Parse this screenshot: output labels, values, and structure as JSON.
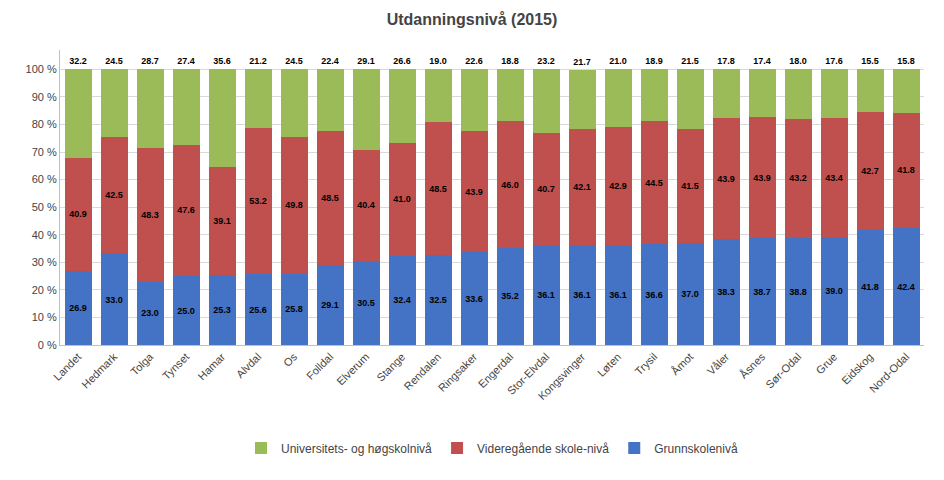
{
  "chart_data": {
    "type": "bar",
    "title": "Utdanningsnivå (2015)",
    "stacked": true,
    "data_labels": true,
    "grid": true,
    "legend": "bottom",
    "categories": [
      "Landet",
      "Hedmark",
      "Tolga",
      "Tynset",
      "Hamar",
      "Alvdal",
      "Os",
      "Folldal",
      "Elverum",
      "Stange",
      "Rendalen",
      "Ringsaker",
      "Engerdal",
      "Stor-Elvdal",
      "Kongsvinger",
      "Løten",
      "Trysil",
      "Åmot",
      "Våler",
      "Åsnes",
      "Sør-Odal",
      "Grue",
      "Eidskog",
      "Nord-Odal"
    ],
    "series": [
      {
        "name": "Grunnskolenivå",
        "color": "#4472C4",
        "values": [
          26.9,
          33.0,
          23.0,
          25.0,
          25.3,
          25.6,
          25.8,
          29.1,
          30.5,
          32.4,
          32.5,
          33.6,
          35.2,
          36.1,
          36.1,
          36.1,
          36.6,
          37.0,
          38.3,
          38.7,
          38.8,
          39.0,
          41.8,
          42.4
        ],
        "value_labels": [
          "26.9",
          "33.0",
          "23.0",
          "25.0",
          "25.3",
          "25.6",
          "25.8",
          "29.1",
          "30.5",
          "32.4",
          "32.5",
          "33.6",
          "35.2",
          "36.1",
          "36.1",
          "36.1",
          "36.6",
          "37.0",
          "38.3",
          "38.7",
          "38.8",
          "39.0",
          "41.8",
          "42.4"
        ]
      },
      {
        "name": "Videregående skole-nivå",
        "color": "#C0504D",
        "values": [
          40.9,
          42.5,
          48.3,
          47.6,
          39.1,
          53.2,
          49.8,
          48.5,
          40.4,
          41.0,
          48.5,
          43.9,
          46.0,
          40.7,
          42.1,
          42.9,
          44.5,
          41.5,
          43.9,
          43.9,
          43.2,
          43.4,
          42.7,
          41.8
        ],
        "value_labels": [
          "40.9",
          "42.5",
          "48.3",
          "47.6",
          "39.1",
          "53.2",
          "49.8",
          "48.5",
          "40.4",
          "41.0",
          "48.5",
          "43.9",
          "46.0",
          "40.7",
          "42.1",
          "42.9",
          "44.5",
          "41.5",
          "43.9",
          "43.9",
          "43.2",
          "43.4",
          "42.7",
          "41.8"
        ]
      },
      {
        "name": "Universitets- og høgskolnivå",
        "color": "#9BBB59",
        "values": [
          32.2,
          24.5,
          28.7,
          27.4,
          35.6,
          21.2,
          24.5,
          22.4,
          29.1,
          26.6,
          19.0,
          22.6,
          18.8,
          23.2,
          21.7,
          21.0,
          18.9,
          21.5,
          17.8,
          17.4,
          18.0,
          17.6,
          15.5,
          15.8
        ],
        "value_labels": [
          "32.2",
          "24.5",
          "28.7",
          "27.4",
          "35.6",
          "21.2",
          "24.5",
          "22.4",
          "29.1",
          "26.6",
          "19.0",
          "22.6",
          "18.8",
          "23.2",
          "21.7",
          "21.0",
          "18.9",
          "21.5",
          "17.8",
          "17.4",
          "18.0",
          "17.6",
          "15.5",
          "15.8"
        ]
      }
    ],
    "ylim": [
      0,
      107
    ],
    "yticks": [
      {
        "value": 0,
        "label": "0 %"
      },
      {
        "value": 10,
        "label": "10 %"
      },
      {
        "value": 20,
        "label": "20 %"
      },
      {
        "value": 30,
        "label": "30 %"
      },
      {
        "value": 40,
        "label": "40 %"
      },
      {
        "value": 50,
        "label": "50 %"
      },
      {
        "value": 60,
        "label": "60 %"
      },
      {
        "value": 70,
        "label": "70 %"
      },
      {
        "value": 80,
        "label": "80 %"
      },
      {
        "value": 90,
        "label": "90 %"
      },
      {
        "value": 100,
        "label": "100 %"
      }
    ]
  }
}
